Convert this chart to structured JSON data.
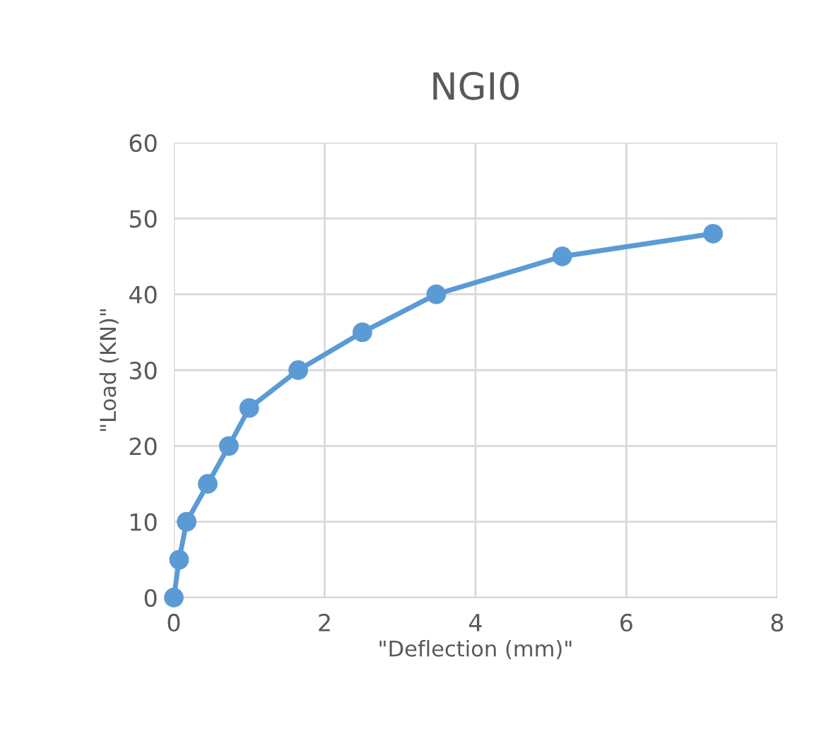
{
  "chart_data": {
    "type": "line",
    "title": "NGI0",
    "xlabel": "\"Deflection (mm)\"",
    "ylabel": "\"Load (KN)\"",
    "series": [
      {
        "color": "#5b9bd5",
        "x": [
          0,
          0.07,
          0.17,
          0.45,
          0.73,
          1.0,
          1.65,
          2.5,
          3.48,
          5.15,
          7.15
        ],
        "values": [
          0,
          5,
          10,
          15,
          20,
          25,
          30,
          35,
          40,
          45,
          48
        ]
      }
    ],
    "xlim": [
      0,
      8
    ],
    "xticks": [
      0,
      2,
      4,
      6,
      8
    ],
    "ylim": [
      0,
      60
    ],
    "yticks": [
      0,
      10,
      20,
      30,
      40,
      50,
      60
    ],
    "grid": true,
    "marker": "circle",
    "line_style": "solid",
    "legend": false
  }
}
